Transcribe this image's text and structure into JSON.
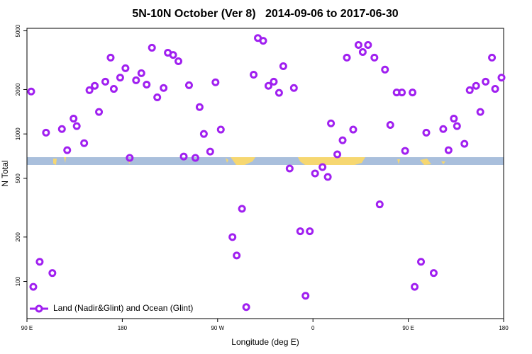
{
  "chart_data": {
    "type": "scatter",
    "title": "5N-10N October (Ver 8)   2014-09-06 to 2017-06-30",
    "x_label": "Longitude (deg E)",
    "y_label": "N Total",
    "log_y": true,
    "legend": "bottom left",
    "xlim": [
      90,
      540
    ],
    "xticks": [
      {
        "value": 90,
        "label": "90 E"
      },
      {
        "value": 180,
        "label": "180"
      },
      {
        "value": 270,
        "label": "90 W"
      },
      {
        "value": 360,
        "label": "0"
      },
      {
        "value": 450,
        "label": "90 E"
      },
      {
        "value": 540,
        "label": "180"
      }
    ],
    "ylim": [
      56,
      5200
    ],
    "yticks": [
      100,
      200,
      500,
      1000,
      2000,
      5000
    ],
    "x": [
      94,
      96,
      102,
      108,
      114,
      123,
      128,
      134,
      137,
      144,
      149,
      154,
      158,
      164,
      169,
      172,
      178,
      183,
      187,
      193,
      198,
      203,
      208,
      213,
      219,
      223,
      228,
      233,
      238,
      243,
      249,
      253,
      257,
      263,
      268,
      273,
      284,
      288,
      293,
      297,
      304,
      308,
      313,
      318,
      323,
      328,
      332,
      338,
      342,
      348,
      353,
      357,
      362,
      369,
      374,
      377,
      383,
      388,
      392,
      398,
      403,
      407,
      412,
      418,
      423,
      428,
      433,
      439,
      444,
      447,
      454,
      456,
      462,
      467,
      474,
      483,
      488,
      493,
      496,
      503,
      508,
      514,
      518,
      523,
      529,
      532,
      538
    ],
    "series": [
      {
        "name": "Land (Nadir&Glint) and Ocean (Glint)",
        "color": "#a020f0",
        "values": [
          1940,
          92,
          136,
          1020,
          114,
          1080,
          776,
          1270,
          1130,
          866,
          1980,
          2120,
          1410,
          2260,
          3290,
          2020,
          2410,
          2790,
          688,
          2310,
          2580,
          2160,
          3840,
          1770,
          2050,
          3550,
          3430,
          3110,
          703,
          2140,
          688,
          1520,
          1000,
          759,
          2240,
          1070,
          200,
          150,
          311,
          67,
          2520,
          4470,
          4280,
          2120,
          2260,
          1900,
          2880,
          583,
          2050,
          219,
          80,
          219,
          540,
          596,
          511,
          1180,
          727,
          906,
          3290,
          1070,
          4010,
          3590,
          4010,
          3290,
          333,
          2730,
          1150,
          1910,
          1910,
          768,
          1910,
          92,
          136,
          1020,
          114,
          1080,
          776,
          1270,
          1130,
          857,
          1980,
          2120,
          1410,
          2260,
          3290,
          2020,
          2410
        ]
      }
    ]
  }
}
